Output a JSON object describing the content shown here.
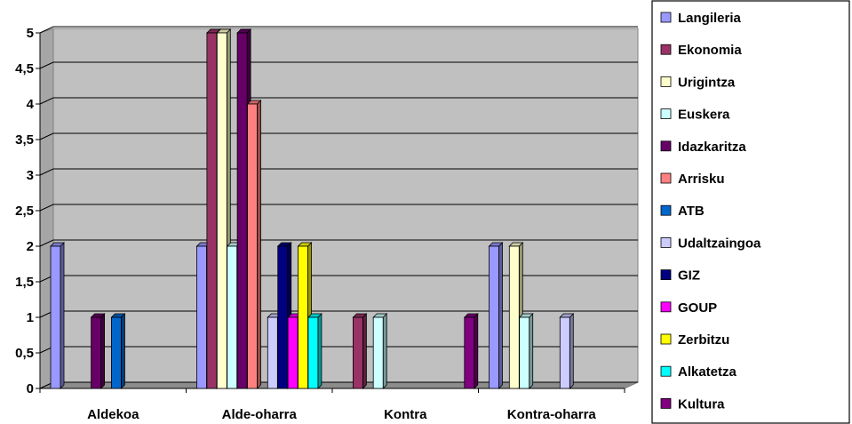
{
  "chart_data": {
    "type": "bar",
    "style": "3d-clustered-column",
    "categories": [
      "Aldekoa",
      "Alde-oharra",
      "Kontra",
      "Kontra-oharra"
    ],
    "y_ticks": [
      "0",
      "0,5",
      "1",
      "1,5",
      "2",
      "2,5",
      "3",
      "3,5",
      "4",
      "4,5",
      "5"
    ],
    "ylim": [
      0,
      5
    ],
    "grid": true,
    "legend_position": "right",
    "series": [
      {
        "name": "Langileria",
        "color": "#9999FF",
        "values": [
          2,
          2,
          0,
          2
        ]
      },
      {
        "name": "Ekonomia",
        "color": "#993366",
        "values": [
          0,
          5,
          1,
          0
        ]
      },
      {
        "name": "Urigintza",
        "color": "#FFFFCC",
        "values": [
          0,
          5,
          0,
          2
        ]
      },
      {
        "name": "Euskera",
        "color": "#CCFFFF",
        "values": [
          0,
          2,
          1,
          1
        ]
      },
      {
        "name": "Idazkaritza",
        "color": "#660066",
        "values": [
          1,
          5,
          0,
          0
        ]
      },
      {
        "name": "Arrisku",
        "color": "#FF8080",
        "values": [
          0,
          4,
          0,
          0
        ]
      },
      {
        "name": "ATB",
        "color": "#0066CC",
        "values": [
          1,
          0,
          0,
          0
        ]
      },
      {
        "name": "Udaltzaingoa",
        "color": "#CCCCFF",
        "values": [
          0,
          1,
          0,
          1
        ]
      },
      {
        "name": "GIZ",
        "color": "#000080",
        "values": [
          0,
          2,
          0,
          0
        ]
      },
      {
        "name": "GOUP",
        "color": "#FF00FF",
        "values": [
          0,
          1,
          0,
          0
        ]
      },
      {
        "name": "Zerbitzu",
        "color": "#FFFF00",
        "values": [
          0,
          2,
          0,
          0
        ]
      },
      {
        "name": "Alkatetza",
        "color": "#00FFFF",
        "values": [
          0,
          1,
          0,
          0
        ]
      },
      {
        "name": "Kultura",
        "color": "#800080",
        "values": [
          0,
          0,
          1,
          0
        ]
      }
    ]
  }
}
